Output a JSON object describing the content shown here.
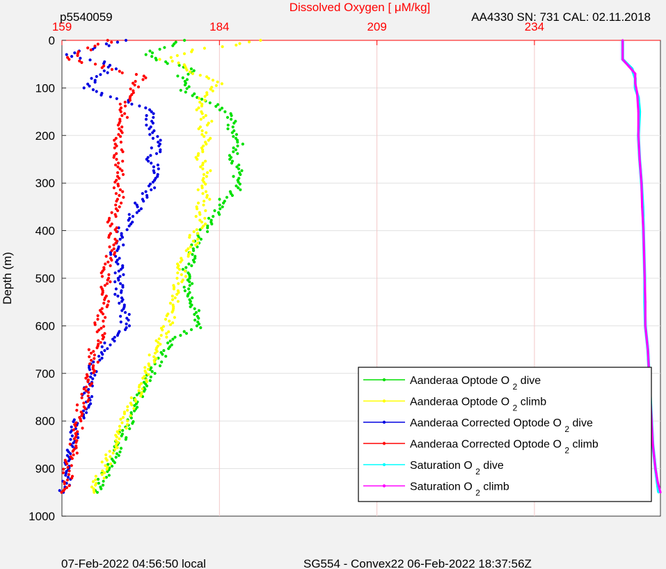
{
  "chart_data": {
    "type": "scatter",
    "title": "Dissolved Oxygen [ μM/kg]",
    "title_color": "#ff0000",
    "header_left": "p5540059",
    "header_right": "AA4330   SN: 731  CAL: 02.11.2018",
    "footer_left": "07-Feb-2022 04:56:50 local",
    "footer_right": "SG554 - Convex22 06-Feb-2022 18:37:56Z",
    "ylabel": "Depth (m)",
    "xlim": [
      159,
      254
    ],
    "ylim": [
      0,
      1000
    ],
    "y_reversed": true,
    "x_ticks": [
      "159",
      "184",
      "209",
      "234"
    ],
    "y_ticks": [
      "0",
      "100",
      "200",
      "300",
      "400",
      "500",
      "600",
      "700",
      "800",
      "900",
      "1000"
    ],
    "grid": true,
    "legend_position": "bottom-right",
    "series": [
      {
        "name": "Aanderaa Optode O",
        "sub": "2",
        "suffix": "dive",
        "color": "#00e000",
        "style": "points",
        "points": [
          [
            178.2,
            0
          ],
          [
            175,
            15
          ],
          [
            172,
            30
          ],
          [
            175,
            45
          ],
          [
            180,
            60
          ],
          [
            178,
            75
          ],
          [
            179,
            90
          ],
          [
            178,
            105
          ],
          [
            181,
            120
          ],
          [
            183,
            135
          ],
          [
            185,
            150
          ],
          [
            186,
            170
          ],
          [
            186,
            190
          ],
          [
            187,
            210
          ],
          [
            187,
            230
          ],
          [
            186,
            250
          ],
          [
            187,
            270
          ],
          [
            187,
            290
          ],
          [
            187,
            310
          ],
          [
            185,
            330
          ],
          [
            184,
            350
          ],
          [
            183,
            370
          ],
          [
            182,
            390
          ],
          [
            181,
            410
          ],
          [
            180,
            430
          ],
          [
            180,
            450
          ],
          [
            179,
            470
          ],
          [
            179,
            500
          ],
          [
            179,
            530
          ],
          [
            180,
            560
          ],
          [
            180,
            580
          ],
          [
            181,
            600
          ],
          [
            178,
            620
          ],
          [
            176,
            640
          ],
          [
            175,
            660
          ],
          [
            174,
            680
          ],
          [
            173,
            700
          ],
          [
            172,
            730
          ],
          [
            171,
            760
          ],
          [
            170,
            790
          ],
          [
            169,
            820
          ],
          [
            168,
            850
          ],
          [
            167,
            880
          ],
          [
            166,
            910
          ],
          [
            165,
            935
          ],
          [
            164,
            950
          ]
        ]
      },
      {
        "name": "Aanderaa Optode O",
        "sub": "2",
        "suffix": "climb",
        "color": "#ffff00",
        "style": "points",
        "points": [
          [
            191,
            0
          ],
          [
            186,
            10
          ],
          [
            180,
            20
          ],
          [
            175,
            40
          ],
          [
            179,
            55
          ],
          [
            180,
            70
          ],
          [
            183,
            80
          ],
          [
            184,
            95
          ],
          [
            182,
            110
          ],
          [
            181,
            130
          ],
          [
            181,
            150
          ],
          [
            182,
            170
          ],
          [
            181,
            190
          ],
          [
            182,
            210
          ],
          [
            181,
            230
          ],
          [
            181,
            250
          ],
          [
            182,
            270
          ],
          [
            181,
            290
          ],
          [
            181,
            310
          ],
          [
            182,
            330
          ],
          [
            181,
            350
          ],
          [
            181,
            370
          ],
          [
            181,
            390
          ],
          [
            180,
            410
          ],
          [
            180,
            430
          ],
          [
            179,
            450
          ],
          [
            178,
            470
          ],
          [
            178,
            500
          ],
          [
            177,
            530
          ],
          [
            177,
            560
          ],
          [
            176,
            590
          ],
          [
            175,
            620
          ],
          [
            174,
            650
          ],
          [
            173,
            680
          ],
          [
            172,
            710
          ],
          [
            171,
            740
          ],
          [
            170,
            770
          ],
          [
            169,
            800
          ],
          [
            168,
            830
          ],
          [
            167,
            860
          ],
          [
            166,
            890
          ],
          [
            165,
            920
          ],
          [
            164,
            950
          ]
        ]
      },
      {
        "name": "Aanderaa Corrected Optode O",
        "sub": "2",
        "suffix": "dive",
        "color": "#0000e0",
        "style": "points",
        "points": [
          [
            168.7,
            0
          ],
          [
            165,
            15
          ],
          [
            160,
            30
          ],
          [
            165,
            45
          ],
          [
            167,
            60
          ],
          [
            164,
            80
          ],
          [
            163,
            100
          ],
          [
            166,
            115
          ],
          [
            170,
            130
          ],
          [
            173,
            150
          ],
          [
            173,
            170
          ],
          [
            173,
            190
          ],
          [
            174,
            210
          ],
          [
            174,
            230
          ],
          [
            173,
            250
          ],
          [
            174,
            270
          ],
          [
            174,
            290
          ],
          [
            173,
            310
          ],
          [
            172,
            330
          ],
          [
            171,
            350
          ],
          [
            170,
            370
          ],
          [
            169,
            390
          ],
          [
            168,
            410
          ],
          [
            168,
            430
          ],
          [
            167,
            450
          ],
          [
            168,
            470
          ],
          [
            168,
            500
          ],
          [
            168,
            530
          ],
          [
            169,
            560
          ],
          [
            169,
            580
          ],
          [
            169,
            600
          ],
          [
            168,
            620
          ],
          [
            166,
            640
          ],
          [
            165,
            660
          ],
          [
            164,
            680
          ],
          [
            164,
            700
          ],
          [
            163,
            730
          ],
          [
            163,
            760
          ],
          [
            162,
            790
          ],
          [
            161,
            820
          ],
          [
            161,
            850
          ],
          [
            160,
            880
          ],
          [
            160,
            910
          ],
          [
            159.5,
            935
          ],
          [
            159.2,
            950
          ]
        ]
      },
      {
        "name": "Aanderaa Corrected Optode O",
        "sub": "2",
        "suffix": "climb",
        "color": "#ff0000",
        "style": "points",
        "points": [
          [
            167,
            0
          ],
          [
            163,
            20
          ],
          [
            160,
            40
          ],
          [
            164,
            50
          ],
          [
            168,
            65
          ],
          [
            172,
            75
          ],
          [
            171,
            90
          ],
          [
            170,
            110
          ],
          [
            169,
            130
          ],
          [
            169,
            150
          ],
          [
            169,
            170
          ],
          [
            168,
            190
          ],
          [
            168,
            210
          ],
          [
            168,
            230
          ],
          [
            168,
            250
          ],
          [
            168,
            270
          ],
          [
            168,
            290
          ],
          [
            168,
            310
          ],
          [
            168,
            330
          ],
          [
            168,
            350
          ],
          [
            167,
            370
          ],
          [
            167,
            390
          ],
          [
            167,
            410
          ],
          [
            167,
            430
          ],
          [
            167,
            450
          ],
          [
            166,
            470
          ],
          [
            166,
            500
          ],
          [
            166,
            530
          ],
          [
            166,
            560
          ],
          [
            165,
            590
          ],
          [
            165,
            620
          ],
          [
            164,
            650
          ],
          [
            164,
            680
          ],
          [
            163,
            710
          ],
          [
            163,
            740
          ],
          [
            162,
            770
          ],
          [
            162,
            800
          ],
          [
            161,
            830
          ],
          [
            161,
            860
          ],
          [
            160,
            890
          ],
          [
            160,
            920
          ],
          [
            159.5,
            940
          ],
          [
            159.1,
            950
          ]
        ]
      },
      {
        "name": "Saturation O",
        "sub": "2",
        "suffix": "dive",
        "color": "#00ffff",
        "style": "line",
        "points": [
          [
            248,
            0
          ],
          [
            248,
            20
          ],
          [
            248,
            40
          ],
          [
            249.5,
            60
          ],
          [
            250,
            80
          ],
          [
            250,
            100
          ],
          [
            250.5,
            120
          ],
          [
            250.7,
            150
          ],
          [
            250.5,
            200
          ],
          [
            250.7,
            250
          ],
          [
            251,
            300
          ],
          [
            251.2,
            350
          ],
          [
            251.3,
            400
          ],
          [
            251.4,
            450
          ],
          [
            251.5,
            500
          ],
          [
            251.5,
            550
          ],
          [
            251.6,
            600
          ],
          [
            252,
            650
          ],
          [
            252.2,
            700
          ],
          [
            252.4,
            750
          ],
          [
            252.6,
            800
          ],
          [
            252.8,
            850
          ],
          [
            253.2,
            900
          ],
          [
            253.5,
            930
          ],
          [
            253.7,
            950
          ]
        ]
      },
      {
        "name": "Saturation O",
        "sub": "2",
        "suffix": "climb",
        "color": "#ff00ff",
        "style": "line",
        "points": [
          [
            248,
            0
          ],
          [
            248,
            20
          ],
          [
            248,
            40
          ],
          [
            249,
            55
          ],
          [
            250,
            70
          ],
          [
            250,
            90
          ],
          [
            250.3,
            110
          ],
          [
            250.5,
            150
          ],
          [
            250.5,
            200
          ],
          [
            250.7,
            250
          ],
          [
            251,
            300
          ],
          [
            251.1,
            350
          ],
          [
            251.3,
            400
          ],
          [
            251.4,
            450
          ],
          [
            251.5,
            500
          ],
          [
            251.6,
            550
          ],
          [
            251.6,
            600
          ],
          [
            252,
            650
          ],
          [
            252.2,
            700
          ],
          [
            252.4,
            750
          ],
          [
            252.6,
            800
          ],
          [
            252.8,
            850
          ],
          [
            253.2,
            900
          ],
          [
            253.6,
            930
          ],
          [
            254,
            950
          ]
        ]
      }
    ]
  }
}
